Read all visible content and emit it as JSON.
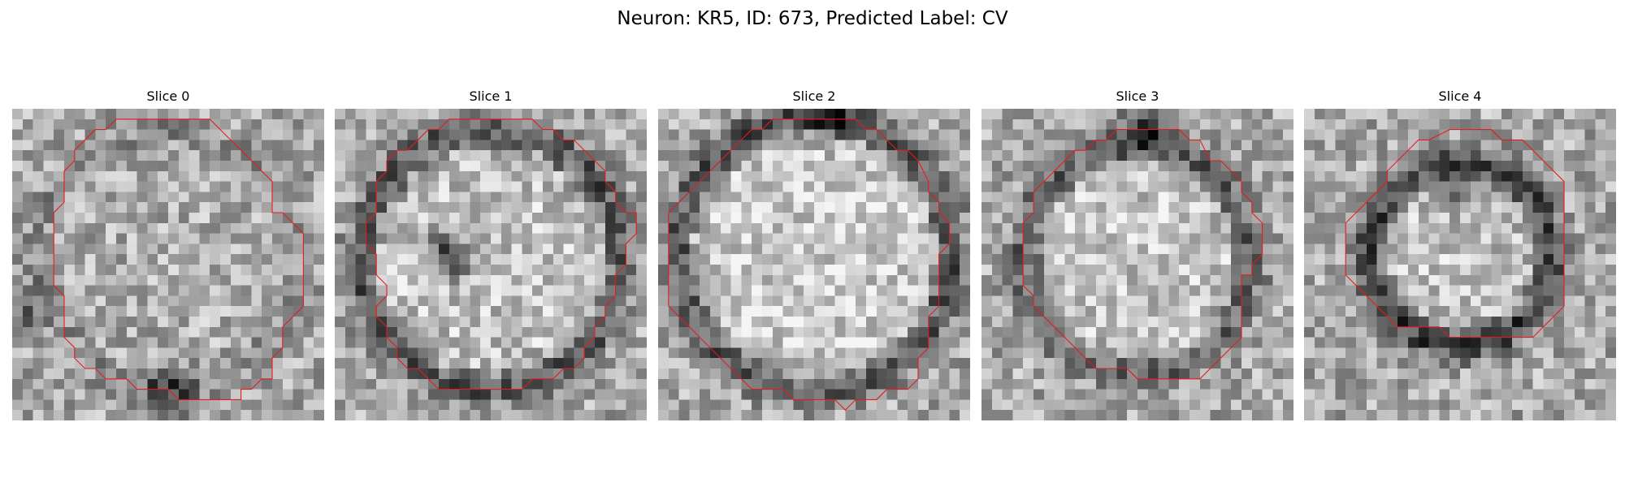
{
  "title": "Neuron: KR5, ID: 673, Predicted Label: CV",
  "overlay_color": "#e8191c",
  "panels": [
    {
      "title": "Slice 0"
    },
    {
      "title": "Slice 1"
    },
    {
      "title": "Slice 2"
    },
    {
      "title": "Slice 3"
    },
    {
      "title": "Slice 4"
    }
  ]
}
